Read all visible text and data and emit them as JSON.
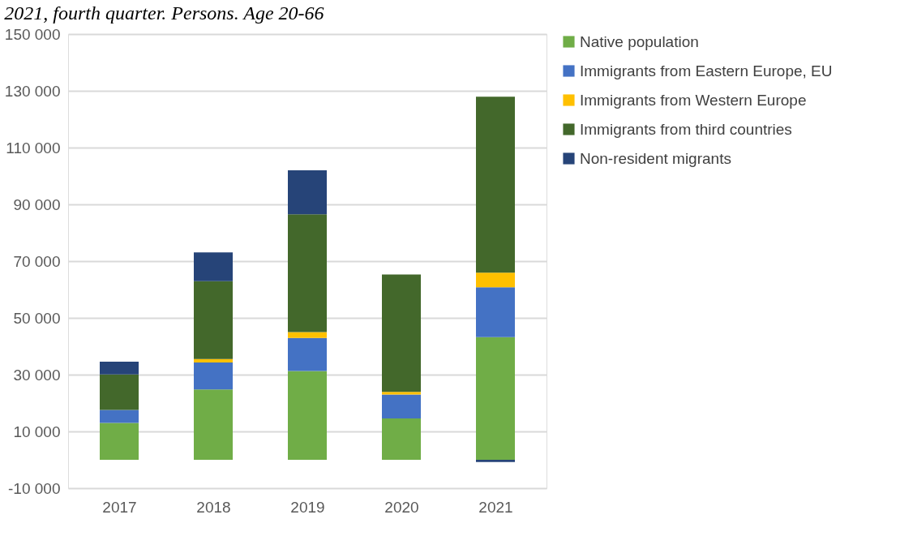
{
  "chart_data": {
    "type": "bar",
    "title": "2021, fourth quarter. Persons. Age 20-66",
    "stacked": true,
    "categories": [
      "2017",
      "2018",
      "2019",
      "2020",
      "2021"
    ],
    "series": [
      {
        "name": "Native population",
        "color": "#70ad47",
        "values": [
          13000,
          24800,
          31300,
          14600,
          43200
        ]
      },
      {
        "name": "Immigrants from Eastern Europe, EU",
        "color": "#4472c4",
        "values": [
          4600,
          9500,
          11600,
          8400,
          17600
        ]
      },
      {
        "name": "Immigrants from Western Europe",
        "color": "#ffc000",
        "values": [
          0,
          1200,
          2100,
          900,
          5100
        ]
      },
      {
        "name": "Immigrants from third countries",
        "color": "#43682b",
        "values": [
          12500,
          27400,
          41500,
          41400,
          62000
        ]
      },
      {
        "name": "Non-resident migrants",
        "color": "#264478",
        "values": [
          4500,
          10200,
          15500,
          0,
          -800
        ]
      }
    ],
    "ylim": [
      -10000,
      150000
    ],
    "yticks": [
      {
        "value": -10000,
        "label": "-10 000"
      },
      {
        "value": 10000,
        "label": "10 000"
      },
      {
        "value": 30000,
        "label": "30 000"
      },
      {
        "value": 50000,
        "label": "50 000"
      },
      {
        "value": 70000,
        "label": "70 000"
      },
      {
        "value": 90000,
        "label": "90 000"
      },
      {
        "value": 110000,
        "label": "110 000"
      },
      {
        "value": 130000,
        "label": "130 000"
      },
      {
        "value": 150000,
        "label": "150 000"
      }
    ],
    "grid": "y",
    "legend": "right"
  }
}
